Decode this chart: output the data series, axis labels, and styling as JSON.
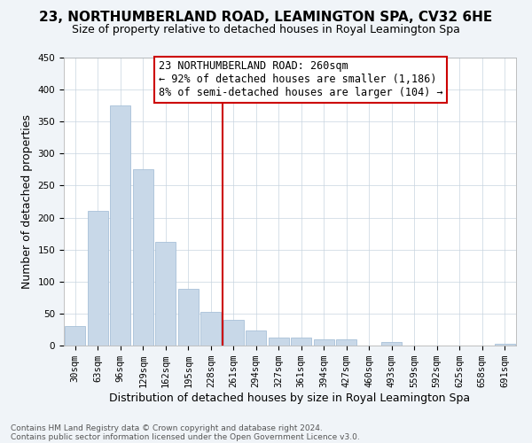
{
  "title": "23, NORTHUMBERLAND ROAD, LEAMINGTON SPA, CV32 6HE",
  "subtitle": "Size of property relative to detached houses in Royal Leamington Spa",
  "xlabel": "Distribution of detached houses by size in Royal Leamington Spa",
  "ylabel": "Number of detached properties",
  "footnote1": "Contains HM Land Registry data © Crown copyright and database right 2024.",
  "footnote2": "Contains public sector information licensed under the Open Government Licence v3.0.",
  "annotation_line1": "23 NORTHUMBERLAND ROAD: 260sqm",
  "annotation_line2": "← 92% of detached houses are smaller (1,186)",
  "annotation_line3": "8% of semi-detached houses are larger (104) →",
  "bar_color": "#c8d8e8",
  "bar_edgecolor": "#a8c0d8",
  "vline_color": "#cc0000",
  "vline_x_idx": 7,
  "categories": [
    "30sqm",
    "63sqm",
    "96sqm",
    "129sqm",
    "162sqm",
    "195sqm",
    "228sqm",
    "261sqm",
    "294sqm",
    "327sqm",
    "361sqm",
    "394sqm",
    "427sqm",
    "460sqm",
    "493sqm",
    "559sqm",
    "592sqm",
    "625sqm",
    "658sqm",
    "691sqm"
  ],
  "values": [
    30,
    210,
    375,
    275,
    162,
    88,
    53,
    40,
    23,
    13,
    13,
    10,
    10,
    0,
    5,
    0,
    0,
    0,
    0,
    3
  ],
  "ylim": [
    0,
    450
  ],
  "yticks": [
    0,
    50,
    100,
    150,
    200,
    250,
    300,
    350,
    400,
    450
  ],
  "background_color": "#f0f4f8",
  "plot_bg_color": "#ffffff",
  "title_fontsize": 11,
  "subtitle_fontsize": 9,
  "annotation_fontsize": 8.5,
  "tick_fontsize": 7.5,
  "ylabel_fontsize": 9,
  "xlabel_fontsize": 9,
  "footnote_fontsize": 6.5,
  "grid_color": "#c8d4e0"
}
